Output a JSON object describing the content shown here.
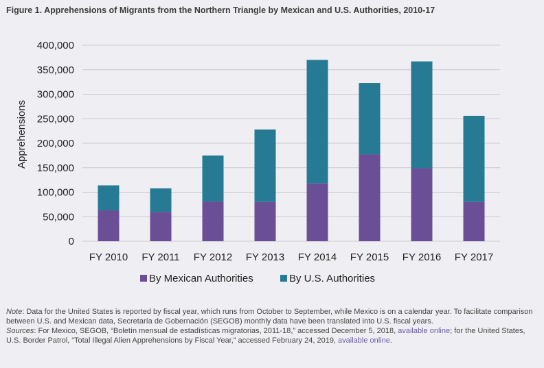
{
  "figure_title": "Figure 1. Apprehensions of Migrants from the Northern Triangle by Mexican and U.S. Authorities, 2010-17",
  "colors": {
    "mexican": "#6b4f96",
    "us": "#267a94",
    "grid": "#c9c9cf",
    "background": "#efeff3"
  },
  "chart_data": {
    "type": "bar",
    "stacked": true,
    "categories": [
      "FY 2010",
      "FY 2011",
      "FY 2012",
      "FY 2013",
      "FY 2014",
      "FY 2015",
      "FY 2016",
      "FY 2017"
    ],
    "series": [
      {
        "name": "By Mexican Authorities",
        "values": [
          63000,
          60000,
          81000,
          80000,
          118000,
          177000,
          149000,
          80000
        ]
      },
      {
        "name": "By U.S. Authorities",
        "values": [
          51000,
          48000,
          94000,
          148000,
          252000,
          146000,
          218000,
          176000
        ]
      }
    ],
    "ylabel": "Apprehensions",
    "ylim": [
      0,
      400000
    ],
    "yticks": [
      0,
      50000,
      100000,
      150000,
      200000,
      250000,
      300000,
      350000,
      400000
    ],
    "ytick_labels": [
      "0",
      "50,000",
      "100,000",
      "150,000",
      "200,000",
      "250,000",
      "300,000",
      "350,000",
      "400,000"
    ],
    "grid": true,
    "legend_position": "bottom"
  },
  "notes": {
    "note_label": "Note",
    "note_text": ": Data for the United States is reported by fiscal year, which runs from October to September, while Mexico is on a calendar year. To facilitate comparison between U.S. and Mexican data, Secretaría de Gobernación (SEGOB) monthly data have been translated into U.S. fiscal years.",
    "sources_label": "Sources",
    "sources_text_1": ": For Mexico, SEGOB, “Boletín mensual de estadísticas migratorias, 2011-18,” accessed December 5, 2018, ",
    "link_1": "available online",
    "sources_text_2": "; for the United States, U.S. Border Patrol, “Total Illegal Alien Apprehensions by Fiscal Year,” accessed February 24, 2019, ",
    "link_2": "available online",
    "sources_text_3": "."
  }
}
